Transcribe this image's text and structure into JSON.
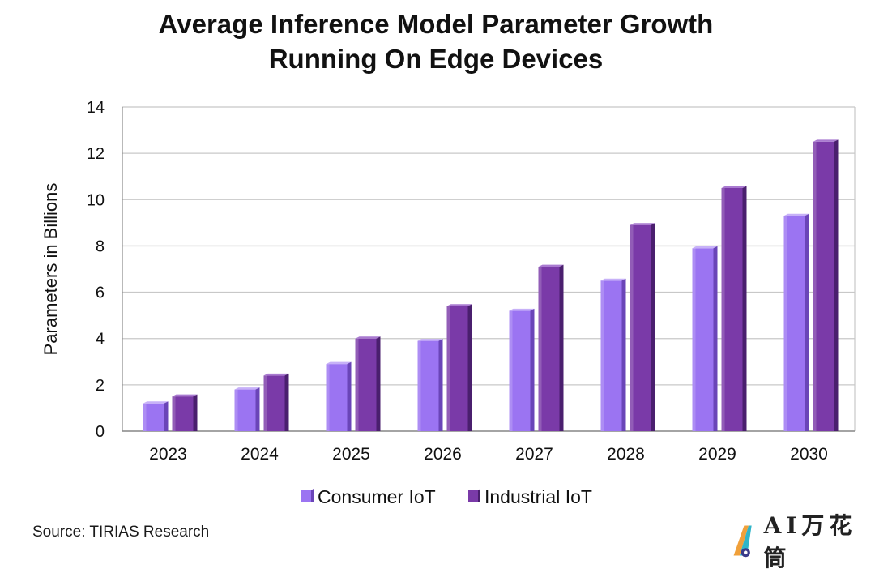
{
  "title_lines": [
    "Average Inference Model Parameter Growth",
    "Running On Edge Devices"
  ],
  "source": "Source: TIRIAS Research",
  "watermark": {
    "text": "AI万花筒",
    "icon": "cone-logo-icon"
  },
  "colors": {
    "consumer_front": "#9b74f2",
    "consumer_top": "#c7b1f8",
    "consumer_side": "#6a45b8",
    "industrial_front": "#7a3aa8",
    "industrial_top": "#a97ad0",
    "industrial_side": "#4a1f6e",
    "grid": "#c8c8c8",
    "axis": "#8a8a8a"
  },
  "chart_data": {
    "type": "bar",
    "title": "Average Inference Model Parameter Growth Running On Edge Devices",
    "categories": [
      "2023",
      "2024",
      "2025",
      "2026",
      "2027",
      "2028",
      "2029",
      "2030"
    ],
    "series": [
      {
        "name": "Consumer IoT",
        "values": [
          1.2,
          1.8,
          2.9,
          3.9,
          5.2,
          6.5,
          7.9,
          9.3
        ]
      },
      {
        "name": "Industrial IoT",
        "values": [
          1.5,
          2.4,
          4.0,
          5.4,
          7.1,
          8.9,
          10.5,
          12.5
        ]
      }
    ],
    "ylabel": "Parameters in Billions",
    "xlabel": "",
    "ylim": [
      0,
      14
    ],
    "yticks": [
      0,
      2,
      4,
      6,
      8,
      10,
      12,
      14
    ],
    "grid": true,
    "legend": "bottom"
  }
}
